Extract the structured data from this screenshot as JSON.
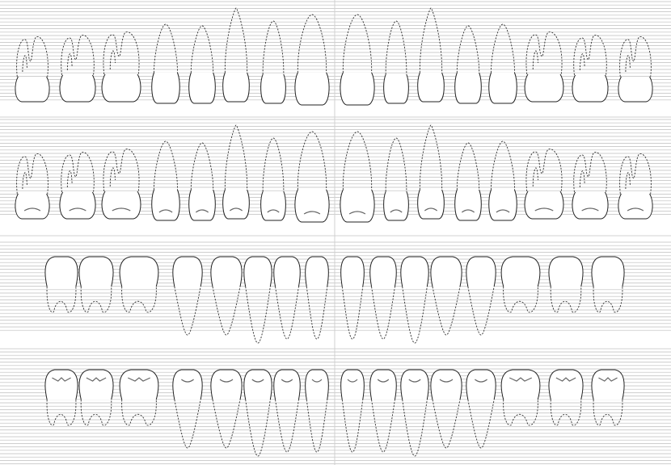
{
  "colors": {
    "grid": "#bdbdbd",
    "outline": "#222222",
    "background": "#ffffff"
  },
  "rows": [
    {
      "id": "upper-buccal",
      "arch": "upper",
      "view": "buccal",
      "occlusal": false
    },
    {
      "id": "upper-lingual",
      "arch": "upper",
      "view": "lingual",
      "occlusal": true
    },
    {
      "id": "lower-buccal",
      "arch": "lower",
      "view": "buccal",
      "occlusal": false
    },
    {
      "id": "lower-lingual",
      "arch": "lower",
      "view": "lingual",
      "occlusal": true
    }
  ],
  "upper_teeth": [
    "molar3",
    "molar2",
    "molar1",
    "premolar2",
    "premolar1",
    "canine",
    "incisor-lateral",
    "incisor-central",
    "incisor-central",
    "incisor-lateral",
    "canine",
    "premolar1",
    "premolar2",
    "molar1",
    "molar2",
    "molar3"
  ],
  "lower_teeth": [
    "molar3",
    "molar2",
    "molar1",
    "premolar2",
    "premolar1",
    "canine",
    "incisor-lateral",
    "incisor-central",
    "incisor-central",
    "incisor-lateral",
    "canine",
    "premolar1",
    "premolar2",
    "molar1",
    "molar2",
    "molar3"
  ]
}
